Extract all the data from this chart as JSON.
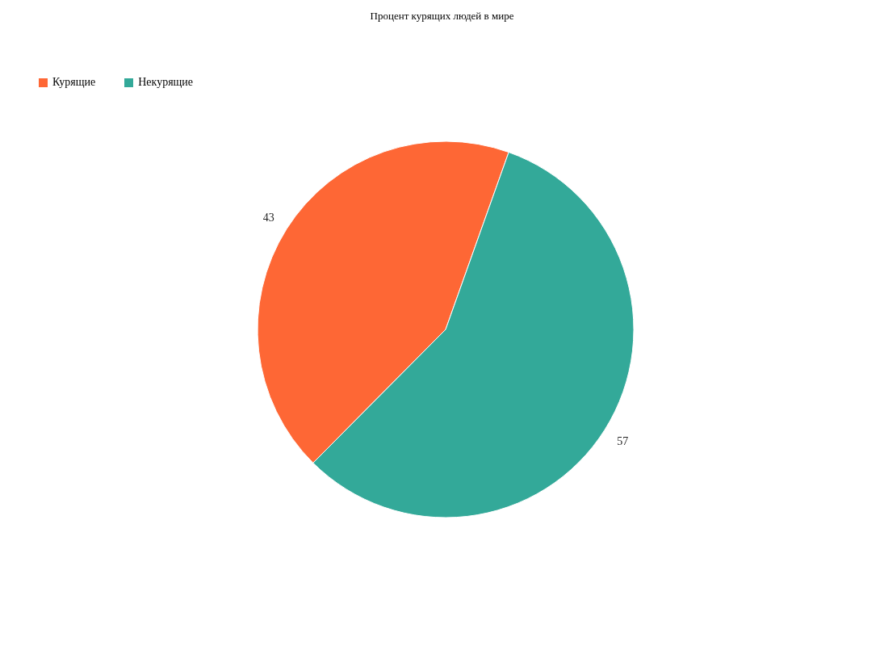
{
  "chart_data": {
    "type": "pie",
    "title": "Процент курящих людей в мире",
    "categories": [
      "Курящие",
      "Некурящие"
    ],
    "values": [
      43,
      57
    ],
    "colors": [
      "#fe6735",
      "#33a999"
    ],
    "data_labels": true,
    "legend": "top left"
  }
}
